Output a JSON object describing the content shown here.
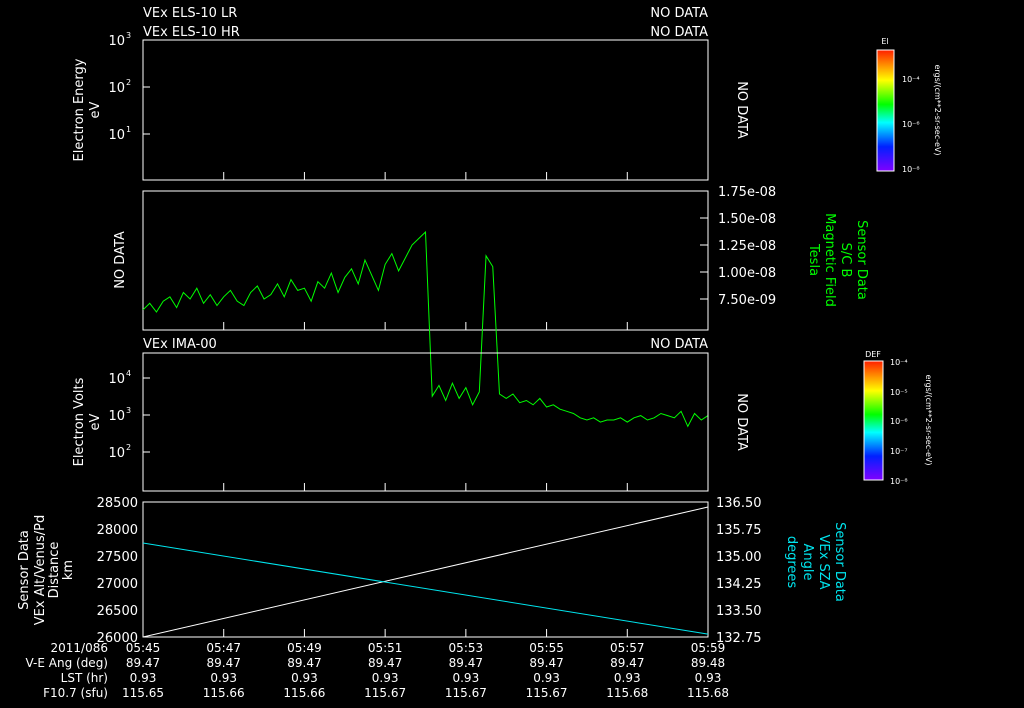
{
  "panels": {
    "p1": {
      "title1": "VEx ELS-10 LR",
      "title2": "VEx ELS-10 HR",
      "nodata1": "NO DATA",
      "nodata2": "NO DATA",
      "nodata_side": "NO DATA",
      "ylabel1": "Electron Energy",
      "ylabel2": "eV",
      "yticks": [
        "10",
        "10",
        "10"
      ],
      "yexp": [
        "3",
        "2",
        "1"
      ]
    },
    "p2": {
      "nodata_side": "NO DATA",
      "ylabel": [
        "Sensor Data",
        "S/C B",
        "Magnetic Field",
        "Tesla"
      ],
      "yticks": [
        "1.75e-08",
        "1.50e-08",
        "1.25e-08",
        "1.00e-08",
        "7.50e-09"
      ]
    },
    "p3": {
      "title": "VEx IMA-00",
      "nodata": "NO DATA",
      "nodata_side": "NO DATA",
      "ylabel1": "Electron Volts",
      "ylabel2": "eV",
      "yticks": [
        "10",
        "10",
        "10"
      ],
      "yexp": [
        "4",
        "3",
        "2"
      ]
    },
    "p4": {
      "ylabel_left": [
        "Sensor Data",
        "VEx Alt/Venus/Pd",
        "Distance",
        "km"
      ],
      "ylabel_right": [
        "Sensor Data",
        "VEx SZA",
        "Angle",
        "degrees"
      ],
      "yticks_left": [
        "28500",
        "28000",
        "27500",
        "27000",
        "26500",
        "26000"
      ],
      "yticks_right": [
        "136.50",
        "135.75",
        "135.00",
        "134.25",
        "133.50",
        "132.75"
      ]
    }
  },
  "colorbars": {
    "cb1": {
      "title": "El",
      "unit": "ergs/(cm**2-sr-sec-eV)",
      "labels": [
        "10⁻⁴",
        "10⁻⁶",
        "10⁻⁸"
      ]
    },
    "cb2": {
      "title": "DEF",
      "unit": "ergs/(cm**2-sr-sec-eV)",
      "labels": [
        "10⁻⁴",
        "10⁻⁵",
        "10⁻⁶",
        "10⁻⁷",
        "10⁻⁸"
      ]
    }
  },
  "footer": {
    "row_labels": [
      "2011/086",
      "V-E Ang (deg)",
      "LST (hr)",
      "F10.7 (sfu)"
    ],
    "times": [
      "05:45",
      "05:47",
      "05:49",
      "05:51",
      "05:53",
      "05:55",
      "05:57",
      "05:59"
    ],
    "ve_ang": [
      "89.47",
      "89.47",
      "89.47",
      "89.47",
      "89.47",
      "89.47",
      "89.47",
      "89.48"
    ],
    "lst": [
      "0.93",
      "0.93",
      "0.93",
      "0.93",
      "0.93",
      "0.93",
      "0.93",
      "0.93"
    ],
    "f107": [
      "115.65",
      "115.66",
      "115.66",
      "115.67",
      "115.67",
      "115.67",
      "115.68",
      "115.68"
    ]
  },
  "chart_data": [
    {
      "type": "line",
      "title": "S/C B Magnetic Field",
      "ylabel": "Tesla",
      "ylim": [
        6.25e-09,
        1.75e-08
      ],
      "x_minutes_from": "05:45",
      "x_range_min": [
        0,
        14
      ],
      "color": "#00ff00",
      "values_e9": [
        12.0,
        12.3,
        11.9,
        12.4,
        12.6,
        12.1,
        12.8,
        12.5,
        13.0,
        12.3,
        12.7,
        12.2,
        12.6,
        12.9,
        12.4,
        12.2,
        12.8,
        13.1,
        12.5,
        12.7,
        13.2,
        12.6,
        13.4,
        12.9,
        13.0,
        12.4,
        13.3,
        13.0,
        13.7,
        12.8,
        13.5,
        13.9,
        13.2,
        14.3,
        13.6,
        12.9,
        14.1,
        14.6,
        13.8,
        14.4,
        15.0,
        15.3,
        15.6,
        8.0,
        8.5,
        7.8,
        8.6,
        7.9,
        8.4,
        7.6,
        8.2,
        14.5,
        14.0,
        8.1,
        7.9,
        8.1,
        7.7,
        7.8,
        7.6,
        7.9,
        7.5,
        7.6,
        7.4,
        7.3,
        7.2,
        7.0,
        6.9,
        7.0,
        6.8,
        6.9,
        6.9,
        7.0,
        6.8,
        7.0,
        7.1,
        6.9,
        7.0,
        7.2,
        7.1,
        7.0,
        7.3,
        6.6,
        7.2,
        6.9,
        7.1
      ]
    },
    {
      "type": "line",
      "title": "VEx Alt/Venus/Pd Distance",
      "ylabel": "km",
      "ylim": [
        26000,
        28500
      ],
      "x_range_min": [
        0,
        14
      ],
      "color": "#ffffff",
      "x": [
        0,
        14
      ],
      "y": [
        26000,
        28407
      ]
    },
    {
      "type": "line",
      "title": "VEx SZA Angle",
      "ylabel": "degrees",
      "ylim": [
        132.75,
        136.5
      ],
      "x_range_min": [
        0,
        14
      ],
      "color": "#00e5ee",
      "x": [
        0,
        14
      ],
      "y": [
        135.36,
        132.83
      ]
    }
  ]
}
